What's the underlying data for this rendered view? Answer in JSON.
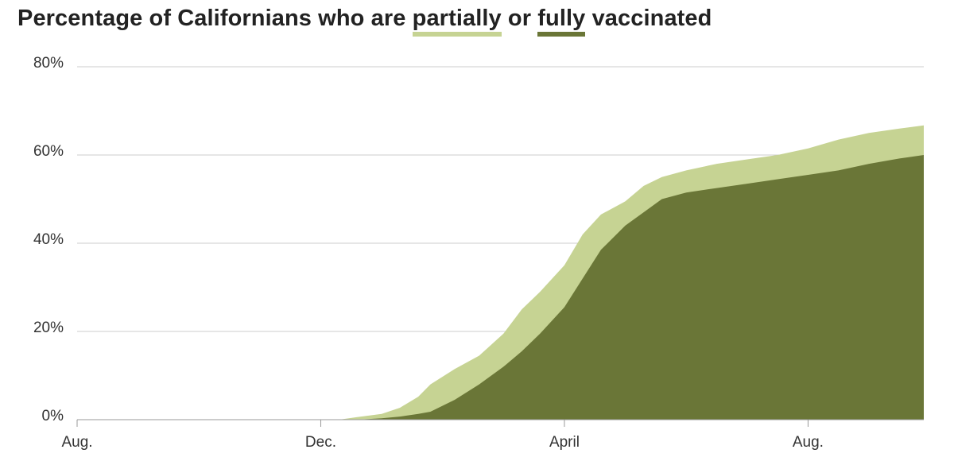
{
  "title": {
    "prefix": "Percentage of Californians who are ",
    "partial_word": "partially",
    "middle": " or ",
    "full_word": "fully",
    "suffix": " vaccinated"
  },
  "colors": {
    "partially": "#c6d393",
    "fully": "#6a7637",
    "grid": "#cccccc",
    "text": "#333333"
  },
  "chart_data": {
    "type": "area",
    "title": "Percentage of Californians who are partially or fully vaccinated",
    "xlabel": "",
    "ylabel": "",
    "x_ticks": [
      {
        "label": "Aug.",
        "month": 0
      },
      {
        "label": "Dec.",
        "month": 4
      },
      {
        "label": "April",
        "month": 8
      },
      {
        "label": "Aug.",
        "month": 12
      }
    ],
    "x_range_months": [
      0,
      13.9
    ],
    "ylim": [
      0,
      80
    ],
    "y_ticks": [
      0,
      20,
      40,
      60,
      80
    ],
    "y_tick_labels": [
      "0%",
      "20%",
      "40%",
      "60%",
      "80%"
    ],
    "grid": true,
    "month_offsets": [
      0,
      4.3,
      4.6,
      5.0,
      5.3,
      5.6,
      5.8,
      6.2,
      6.6,
      7.0,
      7.3,
      7.6,
      8.0,
      8.3,
      8.6,
      9.0,
      9.3,
      9.6,
      10.0,
      10.5,
      11.0,
      11.5,
      12.0,
      12.5,
      13.0,
      13.5,
      13.9
    ],
    "series": [
      {
        "name": "partially",
        "values": [
          0,
          0,
          0.6,
          1.3,
          2.7,
          5.2,
          8.0,
          11.5,
          14.5,
          19.5,
          25.0,
          29.0,
          35.0,
          42.0,
          46.5,
          49.5,
          53.0,
          55.0,
          56.5,
          58.0,
          59.0,
          60.0,
          61.5,
          63.5,
          65.0,
          66.0,
          66.7
        ]
      },
      {
        "name": "fully",
        "values": [
          0,
          0,
          0,
          0.3,
          0.7,
          1.3,
          1.8,
          4.5,
          8.0,
          12.0,
          15.5,
          19.5,
          25.5,
          32.0,
          38.5,
          44.0,
          47.0,
          50.0,
          51.5,
          52.5,
          53.5,
          54.5,
          55.5,
          56.5,
          58.0,
          59.2,
          60.0
        ]
      }
    ]
  }
}
